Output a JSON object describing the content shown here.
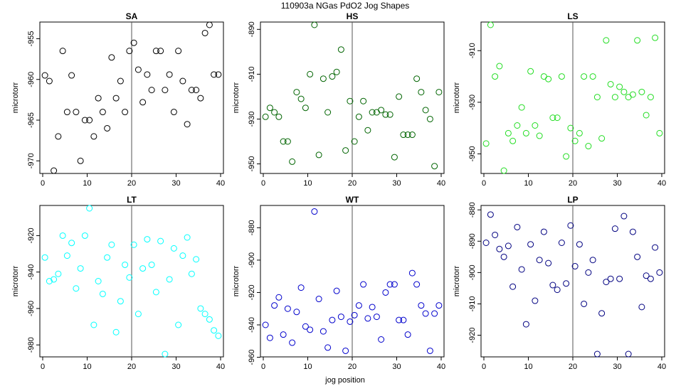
{
  "figure": {
    "title": "110903a   NGas PdO2 Jog Shapes",
    "xlabel": "jog position"
  },
  "chart_data": [
    {
      "type": "scatter",
      "title": "SA",
      "ylabel": "microtorr",
      "color": "#000000",
      "xlim": [
        0,
        40
      ],
      "ylim": [
        -971.2,
        -953.3
      ],
      "xticks": [
        0,
        10,
        20,
        30,
        40
      ],
      "yticks": [
        -955,
        -960,
        -965,
        -970
      ],
      "vline_x": 20,
      "x": [
        0.5,
        1.5,
        2.5,
        3.5,
        4.5,
        5.5,
        6.5,
        7.5,
        8.5,
        9.5,
        10.5,
        11.5,
        12.5,
        13.5,
        14.5,
        15.5,
        16.5,
        17.5,
        18.5,
        19.5,
        20.5,
        21.5,
        22.5,
        23.5,
        24.5,
        25.5,
        26.5,
        27.5,
        28.5,
        29.5,
        30.5,
        31.5,
        32.5,
        33.5,
        34.5,
        35.5,
        36.5,
        37.5,
        38.5,
        39.5
      ],
      "y": [
        -959.5,
        -960.2,
        -971.2,
        -967.0,
        -956.5,
        -964.0,
        -959.5,
        -964.0,
        -970.0,
        -965.0,
        -965.0,
        -967.0,
        -962.3,
        -964.0,
        -966.0,
        -957.3,
        -962.3,
        -960.2,
        -964.0,
        -956.5,
        -955.5,
        -958.8,
        -962.8,
        -959.4,
        -961.3,
        -956.5,
        -956.5,
        -961.3,
        -959.4,
        -964.0,
        -956.5,
        -960.2,
        -965.5,
        -961.3,
        -961.3,
        -962.3,
        -954.3,
        -953.3,
        -959.4,
        -959.4
      ]
    },
    {
      "type": "scatter",
      "title": "HS",
      "ylabel": "microtorr",
      "color": "#006400",
      "xlim": [
        0,
        40
      ],
      "ylim": [
        -953,
        -888
      ],
      "xticks": [
        0,
        10,
        20,
        30,
        40
      ],
      "yticks": [
        -890,
        -910,
        -930,
        -950
      ],
      "vline_x": 20,
      "x": [
        0.5,
        1.5,
        2.5,
        3.5,
        4.5,
        5.5,
        6.5,
        7.5,
        8.5,
        9.5,
        10.5,
        11.5,
        12.5,
        13.5,
        14.5,
        15.5,
        16.5,
        17.5,
        18.5,
        19.5,
        20.5,
        21.5,
        22.5,
        23.5,
        24.5,
        25.5,
        26.5,
        27.5,
        28.5,
        29.5,
        30.5,
        31.5,
        32.5,
        33.5,
        34.5,
        35.5,
        36.5,
        37.5,
        38.5,
        39.5
      ],
      "y": [
        -929,
        -925,
        -927,
        -929,
        -940,
        -940,
        -949,
        -918,
        -921,
        -925,
        -910,
        -888,
        -946,
        -912,
        -927,
        -911,
        -909,
        -899,
        -944,
        -922,
        -940,
        -929,
        -922,
        -935,
        -927,
        -927,
        -926,
        -928,
        -928,
        -947,
        -920,
        -937,
        -937,
        -937,
        -912,
        -918,
        -926,
        -930,
        -951,
        -918
      ]
    },
    {
      "type": "scatter",
      "title": "LS",
      "ylabel": "microtorr",
      "color": "#22DD22",
      "xlim": [
        0,
        40
      ],
      "ylim": [
        -956.5,
        -900
      ],
      "xticks": [
        0,
        10,
        20,
        30,
        40
      ],
      "yticks": [
        -910,
        -930,
        -950
      ],
      "vline_x": 20,
      "x": [
        0.5,
        1.5,
        2.5,
        3.5,
        4.5,
        5.5,
        6.5,
        7.5,
        8.5,
        9.5,
        10.5,
        11.5,
        12.5,
        13.5,
        14.5,
        15.5,
        16.5,
        17.5,
        18.5,
        19.5,
        20.5,
        21.5,
        22.5,
        23.5,
        24.5,
        25.5,
        26.5,
        27.5,
        28.5,
        29.5,
        30.5,
        31.5,
        32.5,
        33.5,
        34.5,
        35.5,
        36.5,
        37.5,
        38.5,
        39.5
      ],
      "y": [
        -946,
        -900,
        -920,
        -916,
        -956.5,
        -942,
        -945,
        -939,
        -932,
        -942,
        -918,
        -939,
        -943,
        -920,
        -921,
        -936,
        -936,
        -920,
        -951,
        -940,
        -945,
        -942,
        -920,
        -947,
        -920,
        -928,
        -944,
        -906,
        -923,
        -928,
        -924,
        -926,
        -928,
        -927,
        -906,
        -926,
        -935,
        -928,
        -905,
        -942
      ]
    },
    {
      "type": "scatter",
      "title": "LT",
      "ylabel": "microtorr",
      "color": "#00FFFF",
      "xlim": [
        0,
        40
      ],
      "ylim": [
        -985,
        -905
      ],
      "xticks": [
        0,
        10,
        20,
        30,
        40
      ],
      "yticks": [
        -920,
        -940,
        -960,
        -980
      ],
      "vline_x": 20,
      "x": [
        0.5,
        1.5,
        2.5,
        3.5,
        4.5,
        5.5,
        6.5,
        7.5,
        8.5,
        9.5,
        10.5,
        11.5,
        12.5,
        13.5,
        14.5,
        15.5,
        16.5,
        17.5,
        18.5,
        19.5,
        20.5,
        21.5,
        22.5,
        23.5,
        24.5,
        25.5,
        26.5,
        27.5,
        28.5,
        29.5,
        30.5,
        31.5,
        32.5,
        33.5,
        34.5,
        35.5,
        36.5,
        37.5,
        38.5,
        39.5
      ],
      "y": [
        -932,
        -945,
        -944,
        -941,
        -920,
        -931,
        -924,
        -949,
        -938,
        -920,
        -905,
        -969,
        -945,
        -952,
        -932,
        -925,
        -973,
        -956,
        -936,
        -943,
        -925,
        -963,
        -938,
        -922,
        -936,
        -951,
        -923,
        -985,
        -944,
        -927,
        -969,
        -931,
        -921,
        -941,
        -933,
        -960,
        -963,
        -966,
        -972,
        -975
      ]
    },
    {
      "type": "scatter",
      "title": "WT",
      "ylabel": "microtorr",
      "color": "#0000CC",
      "xlim": [
        0,
        40
      ],
      "ylim": [
        -958,
        -868
      ],
      "xticks": [
        0,
        10,
        20,
        30,
        40
      ],
      "yticks": [
        -880,
        -900,
        -920,
        -940,
        -960
      ],
      "vline_x": 20,
      "x": [
        0.5,
        1.5,
        2.5,
        3.5,
        4.5,
        5.5,
        6.5,
        7.5,
        8.5,
        9.5,
        10.5,
        11.5,
        12.5,
        13.5,
        14.5,
        15.5,
        16.5,
        17.5,
        18.5,
        19.5,
        20.5,
        21.5,
        22.5,
        23.5,
        24.5,
        25.5,
        26.5,
        27.5,
        28.5,
        29.5,
        30.5,
        31.5,
        32.5,
        33.5,
        34.5,
        35.5,
        36.5,
        37.5,
        38.5,
        39.5
      ],
      "y": [
        -940,
        -948,
        -928,
        -923,
        -946,
        -930,
        -951,
        -932,
        -917,
        -941,
        -943,
        -870,
        -924,
        -944,
        -954,
        -937,
        -919,
        -935,
        -956,
        -938,
        -934,
        -928,
        -915,
        -936,
        -929,
        -935,
        -949,
        -920,
        -915,
        -915,
        -937,
        -937,
        -946,
        -908,
        -915,
        -928,
        -933,
        -956,
        -933,
        -928
      ]
    },
    {
      "type": "scatter",
      "title": "LP",
      "ylabel": "microtorr",
      "color": "#000080",
      "xlim": [
        0,
        40
      ],
      "ylim": [
        -926,
        -879.5
      ],
      "xticks": [
        0,
        10,
        20,
        30,
        40
      ],
      "yticks": [
        -880,
        -890,
        -900,
        -910,
        -920
      ],
      "vline_x": 20,
      "x": [
        0.5,
        1.5,
        2.5,
        3.5,
        4.5,
        5.5,
        6.5,
        7.5,
        8.5,
        9.5,
        10.5,
        11.5,
        12.5,
        13.5,
        14.5,
        15.5,
        16.5,
        17.5,
        18.5,
        19.5,
        20.5,
        21.5,
        22.5,
        23.5,
        24.5,
        25.5,
        26.5,
        27.5,
        28.5,
        29.5,
        30.5,
        31.5,
        32.5,
        33.5,
        34.5,
        35.5,
        36.5,
        37.5,
        38.5,
        39.5
      ],
      "y": [
        -890.5,
        -881.5,
        -888,
        -892.5,
        -895,
        -891.5,
        -904.5,
        -885.5,
        -899,
        -916.5,
        -891,
        -909,
        -896,
        -887,
        -897,
        -904,
        -905.5,
        -890.5,
        -903.5,
        -885,
        -898,
        -891,
        -910,
        -900,
        -896,
        -926,
        -913,
        -903,
        -902,
        -886,
        -902,
        -882,
        -926,
        -887,
        -895,
        -911,
        -901,
        -902,
        -892,
        -900
      ]
    }
  ]
}
